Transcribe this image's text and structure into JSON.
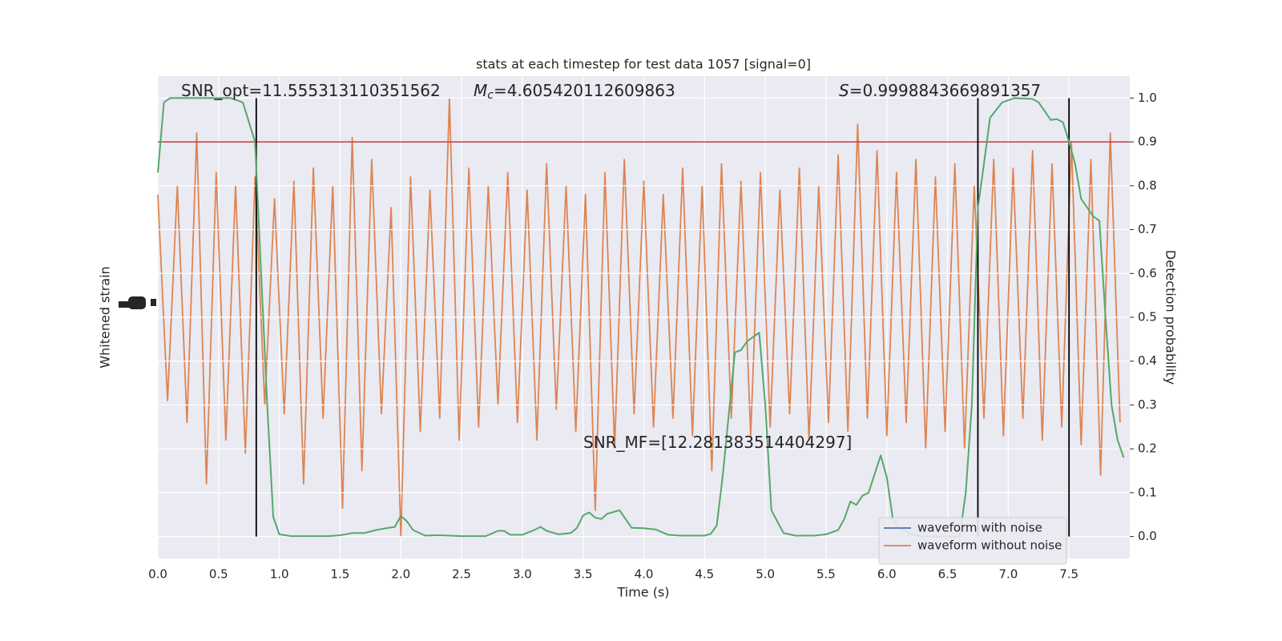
{
  "chart_data": {
    "type": "line",
    "title": "stats at each timestep for test data 1057 [signal=0]",
    "xlabel": "Time (s)",
    "ylabel": "Whitened strain",
    "y2label": "Detection probability",
    "xlim": [
      0,
      8.0
    ],
    "xticks": [
      {
        "value": 0,
        "label": "0.0"
      },
      0.5,
      {
        "value": 1,
        "label": "1.0"
      },
      1.5,
      {
        "value": 2,
        "label": "2.0"
      },
      2.5,
      {
        "value": 3,
        "label": "3.0"
      },
      3.5,
      {
        "value": 4,
        "label": "4.0"
      },
      4.5,
      {
        "value": 5,
        "label": "5.0"
      },
      5.5,
      {
        "value": 6,
        "label": "6.0"
      },
      6.5,
      {
        "value": 7,
        "label": "7.0"
      },
      7.5
    ],
    "ylim": [
      -0.05,
      1.05
    ],
    "yticks": [
      {
        "value": 0,
        "label": "0.0"
      },
      0.1,
      0.2,
      0.3,
      0.4,
      0.5,
      0.6,
      0.7,
      0.8,
      0.9,
      {
        "value": 1,
        "label": "1.0"
      }
    ],
    "grid": true,
    "legend": "lower right",
    "series": [
      {
        "name": "waveform with noise",
        "color": "#4c72b0",
        "x": [],
        "values": []
      },
      {
        "name": "waveform without noise",
        "color": "#dd8452",
        "x": [
          0,
          0.08,
          0.16,
          0.24,
          0.32,
          0.4,
          0.48,
          0.56,
          0.64,
          0.72,
          0.8,
          0.88,
          0.96,
          1.04,
          1.12,
          1.2,
          1.28,
          1.36,
          1.44,
          1.52,
          1.6,
          1.68,
          1.76,
          1.84,
          1.92,
          2.0,
          2.08,
          2.16,
          2.24,
          2.32,
          2.4,
          2.48,
          2.56,
          2.64,
          2.72,
          2.8,
          2.88,
          2.96,
          3.04,
          3.12,
          3.2,
          3.28,
          3.36,
          3.44,
          3.52,
          3.6,
          3.68,
          3.76,
          3.84,
          3.92,
          4.0,
          4.08,
          4.16,
          4.24,
          4.32,
          4.4,
          4.48,
          4.56,
          4.64,
          4.72,
          4.8,
          4.88,
          4.96,
          5.04,
          5.12,
          5.2,
          5.28,
          5.36,
          5.44,
          5.52,
          5.6,
          5.68,
          5.76,
          5.84,
          5.92,
          6.0,
          6.08,
          6.16,
          6.24,
          6.32,
          6.4,
          6.48,
          6.56,
          6.64,
          6.72,
          6.8,
          6.88,
          6.96,
          7.04,
          7.12,
          7.2,
          7.28,
          7.36,
          7.44,
          7.52,
          7.6,
          7.68,
          7.76,
          7.84,
          7.92
        ],
        "values": [
          0.78,
          0.31,
          0.8,
          0.26,
          0.92,
          0.12,
          0.83,
          0.22,
          0.8,
          0.19,
          0.82,
          0.3,
          0.77,
          0.28,
          0.81,
          0.12,
          0.84,
          0.27,
          0.8,
          0.065,
          0.91,
          0.15,
          0.86,
          0.28,
          0.75,
          0.0,
          0.82,
          0.24,
          0.79,
          0.27,
          1.0,
          0.22,
          0.84,
          0.25,
          0.8,
          0.3,
          0.83,
          0.26,
          0.79,
          0.22,
          0.85,
          0.29,
          0.8,
          0.24,
          0.78,
          0.06,
          0.83,
          0.2,
          0.86,
          0.28,
          0.81,
          0.25,
          0.78,
          0.27,
          0.84,
          0.23,
          0.8,
          0.15,
          0.85,
          0.27,
          0.81,
          0.23,
          0.83,
          0.25,
          0.79,
          0.28,
          0.84,
          0.22,
          0.8,
          0.26,
          0.87,
          0.24,
          0.94,
          0.27,
          0.88,
          0.23,
          0.83,
          0.26,
          0.86,
          0.2,
          0.82,
          0.24,
          0.85,
          0.2,
          0.8,
          0.27,
          0.86,
          0.23,
          0.84,
          0.27,
          0.88,
          0.22,
          0.85,
          0.25,
          0.9,
          0.21,
          0.86,
          0.14,
          0.92,
          0.26
        ]
      },
      {
        "name": "Detection probability",
        "color": "#55a868",
        "in_legend": false,
        "x": [
          0,
          0.05,
          0.1,
          0.6,
          0.7,
          0.8,
          0.85,
          0.9,
          0.95,
          1.0,
          1.1,
          1.4,
          1.5,
          1.6,
          1.7,
          1.8,
          1.9,
          1.95,
          2.0,
          2.05,
          2.1,
          2.2,
          2.3,
          2.4,
          2.5,
          2.7,
          2.8,
          2.85,
          2.9,
          3.0,
          3.1,
          3.15,
          3.2,
          3.3,
          3.4,
          3.45,
          3.5,
          3.55,
          3.6,
          3.65,
          3.7,
          3.8,
          3.9,
          4.0,
          4.1,
          4.2,
          4.3,
          4.5,
          4.55,
          4.6,
          4.65,
          4.75,
          4.8,
          4.85,
          4.9,
          4.95,
          5.0,
          5.05,
          5.15,
          5.25,
          5.4,
          5.5,
          5.6,
          5.65,
          5.7,
          5.75,
          5.8,
          5.85,
          5.95,
          6.0,
          6.05,
          6.1,
          6.2,
          6.3,
          6.6,
          6.65,
          6.7,
          6.75,
          6.8,
          6.85,
          6.95,
          7.05,
          7.2,
          7.25,
          7.3,
          7.35,
          7.4,
          7.45,
          7.5,
          7.55,
          7.6,
          7.7,
          7.75,
          7.8,
          7.85,
          7.9,
          7.95
        ],
        "values": [
          0.83,
          0.99,
          1.0,
          1.0,
          0.99,
          0.9,
          0.6,
          0.3,
          0.045,
          0.005,
          0.001,
          0.001,
          0.003,
          0.008,
          0.008,
          0.015,
          0.02,
          0.022,
          0.047,
          0.035,
          0.015,
          0.002,
          0.003,
          0.002,
          0.001,
          0.001,
          0.013,
          0.013,
          0.004,
          0.004,
          0.015,
          0.022,
          0.013,
          0.005,
          0.008,
          0.02,
          0.048,
          0.055,
          0.043,
          0.04,
          0.052,
          0.06,
          0.02,
          0.019,
          0.016,
          0.004,
          0.002,
          0.002,
          0.006,
          0.025,
          0.14,
          0.42,
          0.425,
          0.445,
          0.455,
          0.465,
          0.3,
          0.06,
          0.008,
          0.002,
          0.002,
          0.005,
          0.015,
          0.04,
          0.08,
          0.072,
          0.093,
          0.1,
          0.185,
          0.135,
          0.04,
          0.02,
          0.005,
          0.0,
          0.0,
          0.1,
          0.3,
          0.75,
          0.85,
          0.955,
          0.99,
          1.0,
          0.998,
          0.99,
          0.97,
          0.95,
          0.952,
          0.945,
          0.9,
          0.85,
          0.77,
          0.73,
          0.72,
          0.5,
          0.3,
          0.22,
          0.18
        ]
      }
    ],
    "hlines": [
      {
        "value": 0.9,
        "color": "#c03d3e"
      }
    ],
    "vlines": [
      0.81,
      6.75,
      7.5
    ],
    "vline_span": [
      0,
      1
    ],
    "annotations": [
      {
        "text": "SNR_opt=11.555313110351562"
      },
      {
        "symbol": "M",
        "subscript": "c",
        "text": "=4.605420112609863"
      },
      {
        "symbol": "S",
        "text": "=0.9998843669891357"
      },
      {
        "text": "SNR_MF=[12.281383514404297]"
      }
    ]
  }
}
